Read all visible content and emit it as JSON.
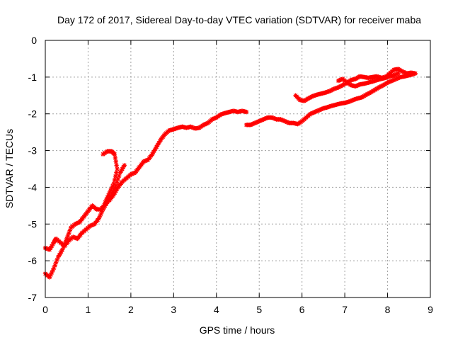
{
  "chart_data": {
    "type": "scatter",
    "title": "Day 172 of 2017, Sidereal Day-to-day VTEC variation (SDTVAR) for receiver maba",
    "xlabel": "GPS time / hours",
    "ylabel": "SDTVAR / TECUs",
    "xlim": [
      0,
      9
    ],
    "ylim": [
      -7,
      0
    ],
    "xticks": [
      "0",
      "1",
      "2",
      "3",
      "4",
      "5",
      "6",
      "7",
      "8",
      "9"
    ],
    "yticks": [
      "0",
      "-1",
      "-2",
      "-3",
      "-4",
      "-5",
      "-6",
      "-7"
    ],
    "grid": true,
    "marker": "asterisk",
    "color": "#ff0000",
    "series": [
      {
        "name": "sdtvar",
        "segments": [
          [
            [
              0.0,
              -5.65
            ],
            [
              0.1,
              -5.7
            ],
            [
              0.2,
              -5.5
            ],
            [
              0.25,
              -5.4
            ],
            [
              0.35,
              -5.5
            ],
            [
              0.45,
              -5.6
            ],
            [
              0.55,
              -5.45
            ],
            [
              0.65,
              -5.35
            ],
            [
              0.75,
              -5.4
            ],
            [
              0.85,
              -5.25
            ],
            [
              0.95,
              -5.15
            ],
            [
              1.05,
              -5.05
            ],
            [
              1.15,
              -5.0
            ],
            [
              1.25,
              -4.85
            ],
            [
              1.35,
              -4.6
            ],
            [
              1.45,
              -4.4
            ],
            [
              1.55,
              -4.2
            ],
            [
              1.65,
              -3.95
            ],
            [
              1.75,
              -3.6
            ],
            [
              1.85,
              -3.4
            ]
          ],
          [
            [
              0.0,
              -6.35
            ],
            [
              0.1,
              -6.45
            ],
            [
              0.2,
              -6.2
            ],
            [
              0.3,
              -5.9
            ],
            [
              0.4,
              -5.7
            ],
            [
              0.5,
              -5.4
            ],
            [
              0.6,
              -5.1
            ],
            [
              0.7,
              -5.0
            ],
            [
              0.8,
              -4.95
            ],
            [
              0.9,
              -4.8
            ],
            [
              1.0,
              -4.65
            ],
            [
              1.1,
              -4.5
            ],
            [
              1.2,
              -4.6
            ],
            [
              1.3,
              -4.6
            ],
            [
              1.4,
              -4.45
            ],
            [
              1.5,
              -4.35
            ],
            [
              1.6,
              -4.2
            ],
            [
              1.7,
              -4.0
            ],
            [
              1.8,
              -3.85
            ],
            [
              1.9,
              -3.75
            ],
            [
              2.0,
              -3.65
            ],
            [
              2.1,
              -3.6
            ],
            [
              2.2,
              -3.45
            ],
            [
              2.3,
              -3.3
            ],
            [
              2.4,
              -3.25
            ],
            [
              2.5,
              -3.1
            ],
            [
              2.6,
              -2.9
            ],
            [
              2.7,
              -2.7
            ],
            [
              2.8,
              -2.55
            ],
            [
              2.9,
              -2.45
            ],
            [
              3.0,
              -2.42
            ],
            [
              3.1,
              -2.38
            ],
            [
              3.2,
              -2.35
            ],
            [
              3.3,
              -2.38
            ],
            [
              3.4,
              -2.35
            ],
            [
              3.5,
              -2.4
            ],
            [
              3.6,
              -2.38
            ],
            [
              3.7,
              -2.3
            ],
            [
              3.8,
              -2.25
            ],
            [
              3.9,
              -2.15
            ],
            [
              4.0,
              -2.1
            ],
            [
              4.1,
              -2.02
            ],
            [
              4.2,
              -1.98
            ],
            [
              4.3,
              -1.95
            ],
            [
              4.4,
              -1.92
            ],
            [
              4.5,
              -1.95
            ],
            [
              4.6,
              -1.92
            ],
            [
              4.7,
              -1.95
            ]
          ],
          [
            [
              1.35,
              -3.1
            ],
            [
              1.45,
              -3.02
            ],
            [
              1.55,
              -3.02
            ],
            [
              1.62,
              -3.1
            ],
            [
              1.68,
              -3.5
            ],
            [
              1.6,
              -3.9
            ],
            [
              1.5,
              -4.15
            ],
            [
              1.4,
              -4.4
            ]
          ],
          [
            [
              4.7,
              -2.3
            ],
            [
              4.8,
              -2.3
            ],
            [
              4.9,
              -2.25
            ],
            [
              5.0,
              -2.2
            ],
            [
              5.1,
              -2.15
            ],
            [
              5.2,
              -2.1
            ],
            [
              5.3,
              -2.1
            ],
            [
              5.4,
              -2.15
            ],
            [
              5.5,
              -2.15
            ],
            [
              5.6,
              -2.2
            ],
            [
              5.7,
              -2.25
            ],
            [
              5.8,
              -2.25
            ],
            [
              5.9,
              -2.28
            ],
            [
              6.0,
              -2.2
            ],
            [
              6.1,
              -2.1
            ],
            [
              6.2,
              -2.0
            ],
            [
              6.3,
              -1.95
            ],
            [
              6.4,
              -1.9
            ],
            [
              6.5,
              -1.85
            ],
            [
              6.6,
              -1.82
            ],
            [
              6.7,
              -1.78
            ],
            [
              6.8,
              -1.75
            ],
            [
              6.9,
              -1.72
            ],
            [
              7.0,
              -1.7
            ],
            [
              7.1,
              -1.67
            ],
            [
              7.2,
              -1.62
            ],
            [
              7.3,
              -1.58
            ],
            [
              7.4,
              -1.55
            ],
            [
              7.5,
              -1.48
            ],
            [
              7.6,
              -1.42
            ],
            [
              7.7,
              -1.35
            ],
            [
              7.8,
              -1.28
            ],
            [
              7.9,
              -1.22
            ],
            [
              8.0,
              -1.15
            ],
            [
              8.1,
              -1.1
            ],
            [
              8.2,
              -1.05
            ],
            [
              8.3,
              -1.0
            ],
            [
              8.4,
              -0.98
            ],
            [
              8.5,
              -0.95
            ],
            [
              8.6,
              -0.92
            ]
          ],
          [
            [
              5.85,
              -1.5
            ],
            [
              5.95,
              -1.62
            ],
            [
              6.05,
              -1.65
            ],
            [
              6.15,
              -1.58
            ],
            [
              6.25,
              -1.52
            ],
            [
              6.35,
              -1.48
            ],
            [
              6.45,
              -1.45
            ],
            [
              6.55,
              -1.42
            ],
            [
              6.65,
              -1.38
            ],
            [
              6.75,
              -1.32
            ],
            [
              6.85,
              -1.28
            ],
            [
              6.95,
              -1.22
            ],
            [
              7.05,
              -1.15
            ],
            [
              7.15,
              -1.08
            ],
            [
              7.25,
              -1.05
            ],
            [
              7.35,
              -0.98
            ],
            [
              7.45,
              -1.0
            ],
            [
              7.55,
              -1.02
            ],
            [
              7.65,
              -1.0
            ],
            [
              7.75,
              -0.98
            ],
            [
              7.85,
              -1.02
            ],
            [
              7.95,
              -1.0
            ],
            [
              8.05,
              -0.9
            ],
            [
              8.15,
              -0.8
            ],
            [
              8.25,
              -0.78
            ],
            [
              8.35,
              -0.85
            ],
            [
              8.45,
              -0.9
            ],
            [
              8.55,
              -0.88
            ],
            [
              8.65,
              -0.9
            ]
          ],
          [
            [
              6.85,
              -1.1
            ],
            [
              6.95,
              -1.05
            ],
            [
              7.05,
              -1.15
            ],
            [
              7.15,
              -1.22
            ],
            [
              7.25,
              -1.25
            ],
            [
              7.35,
              -1.2
            ],
            [
              7.45,
              -1.18
            ],
            [
              7.55,
              -1.15
            ],
            [
              7.65,
              -1.12
            ],
            [
              7.75,
              -1.08
            ],
            [
              7.85,
              -1.05
            ],
            [
              7.95,
              -1.02
            ],
            [
              8.05,
              -0.98
            ],
            [
              8.15,
              -0.95
            ],
            [
              8.25,
              -0.9
            ]
          ]
        ]
      }
    ]
  }
}
